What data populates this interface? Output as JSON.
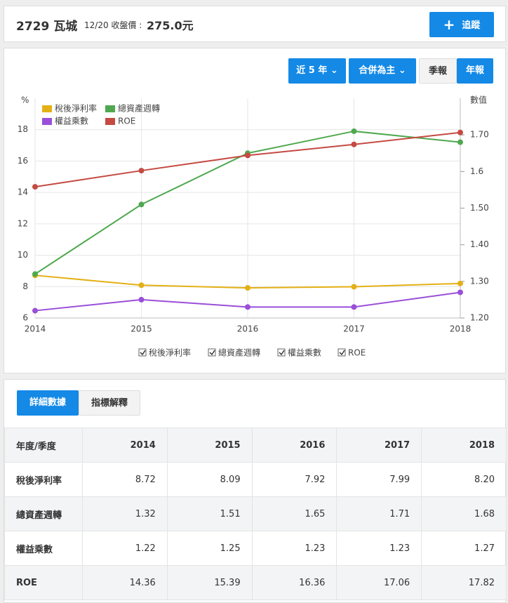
{
  "header": {
    "stock": "2729 瓦城",
    "date_label": "12/20 收盤價 :",
    "price": "275.0元",
    "follow_button": "追蹤"
  },
  "controls": {
    "period": "近 5 年",
    "basis": "合併為主",
    "quarterly": "季報",
    "annual": "年報"
  },
  "chart_data": {
    "type": "line",
    "y_label": "%",
    "y2_label": "數值",
    "categories": [
      "2014",
      "2015",
      "2016",
      "2017",
      "2018"
    ],
    "series": [
      {
        "name": "稅後淨利率",
        "color": "#e3b016",
        "values": [
          8.72,
          8.09,
          7.92,
          7.99,
          8.2
        ]
      },
      {
        "name": "總資產週轉",
        "color": "#4fa84f",
        "axis": "y2",
        "values": [
          1.32,
          1.51,
          1.65,
          1.71,
          1.68
        ]
      },
      {
        "name": "權益乘數",
        "color": "#9a4fd8",
        "axis": "y2",
        "values": [
          1.22,
          1.25,
          1.23,
          1.23,
          1.27
        ]
      },
      {
        "name": "ROE",
        "color": "#c44a42",
        "values": [
          14.36,
          15.39,
          16.36,
          17.06,
          17.82
        ]
      }
    ],
    "ylim": [
      6,
      20
    ],
    "yticks": [
      6,
      8,
      10,
      12,
      14,
      16,
      18
    ],
    "y2lim": [
      1.2,
      1.8
    ],
    "y2ticks": [
      {
        "value": 1.2,
        "label": "1.20"
      },
      {
        "value": 1.3,
        "label": "1.30"
      },
      {
        "value": 1.4,
        "label": "1.40"
      },
      {
        "value": 1.5,
        "label": "1.50"
      },
      1.6,
      {
        "value": 1.7,
        "label": "1.70"
      }
    ],
    "grid": true
  },
  "tabs": {
    "detail": "詳細數據",
    "explain": "指標解釋"
  },
  "table": {
    "header": [
      "年度/季度",
      "2014",
      "2015",
      "2016",
      "2017",
      "2018"
    ],
    "rows": [
      [
        "稅後淨利率",
        "8.72",
        "8.09",
        "7.92",
        "7.99",
        "8.20"
      ],
      [
        "總資產週轉",
        "1.32",
        "1.51",
        "1.65",
        "1.71",
        "1.68"
      ],
      [
        "權益乘數",
        "1.22",
        "1.25",
        "1.23",
        "1.23",
        "1.27"
      ],
      [
        "ROE",
        "14.36",
        "15.39",
        "16.36",
        "17.06",
        "17.82"
      ]
    ]
  }
}
